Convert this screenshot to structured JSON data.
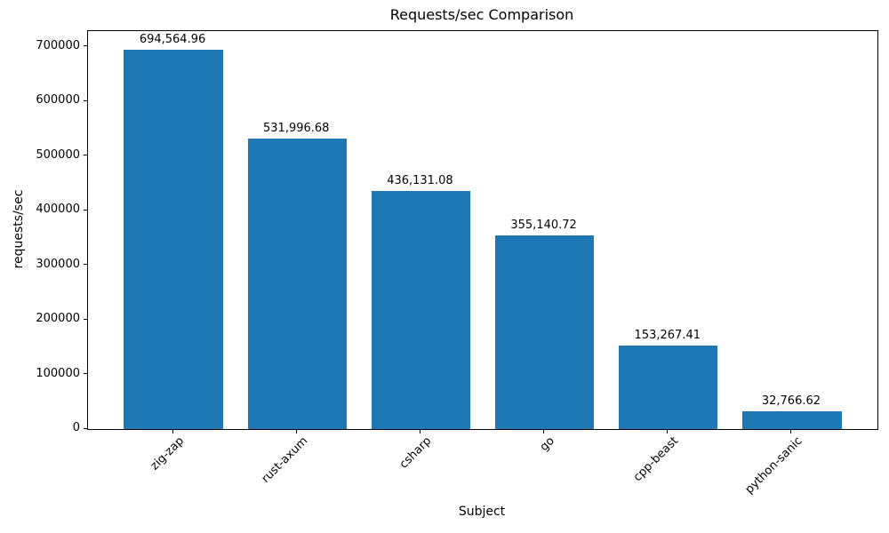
{
  "chart_data": {
    "type": "bar",
    "title": "Requests/sec Comparison",
    "xlabel": "Subject",
    "ylabel": "requests/sec",
    "categories": [
      "zig-zap",
      "rust-axum",
      "csharp",
      "go",
      "cpp-beast",
      "python-sanic"
    ],
    "values": [
      694564.96,
      531996.68,
      436131.08,
      355140.72,
      153267.41,
      32766.62
    ],
    "value_labels": [
      "694,564.96",
      "531,996.68",
      "436,131.08",
      "355,140.72",
      "153,267.41",
      "32,766.62"
    ],
    "bar_color": "#1f77b4",
    "ylim": [
      0,
      729293
    ],
    "xlim": [
      -0.69,
      5.69
    ],
    "yticks": [
      0,
      100000,
      200000,
      300000,
      400000,
      500000,
      600000,
      700000
    ],
    "bar_width_fraction": 0.8,
    "x_tick_rotation_deg": 45,
    "grid": false,
    "legend": null
  }
}
